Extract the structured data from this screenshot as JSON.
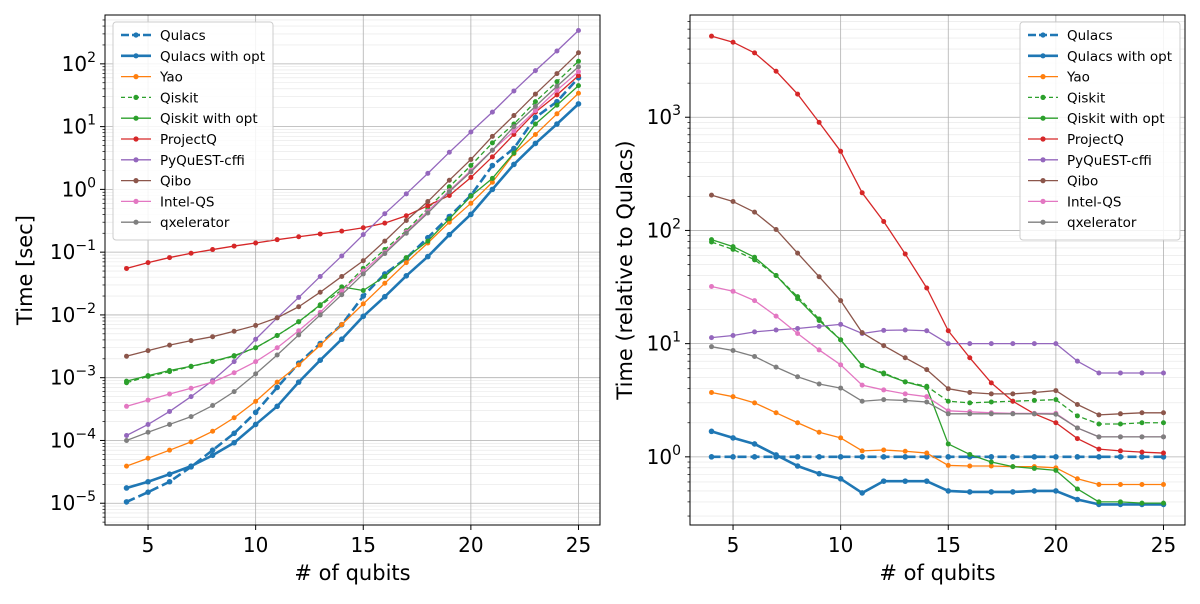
{
  "chart_data": [
    {
      "type": "line",
      "title": "",
      "xlabel": "# of qubits",
      "ylabel": "Time [sec]",
      "yscale": "log",
      "xlim": [
        3.0,
        26.0
      ],
      "ylim": [
        4.5e-06,
        600
      ],
      "xticks": [
        5,
        10,
        15,
        20,
        25
      ],
      "xtick_labels": [
        "5",
        "10",
        "15",
        "20",
        "25"
      ],
      "yticks": [
        1e-05,
        0.0001,
        0.001,
        0.01,
        0.1,
        1,
        10,
        100
      ],
      "ytick_labels": [
        {
          "base": "10",
          "exp": "−5"
        },
        {
          "base": "10",
          "exp": "−4"
        },
        {
          "base": "10",
          "exp": "−3"
        },
        {
          "base": "10",
          "exp": "−2"
        },
        {
          "base": "10",
          "exp": "−1"
        },
        {
          "base": "10",
          "exp": "0"
        },
        {
          "base": "10",
          "exp": "1"
        },
        {
          "base": "10",
          "exp": "2"
        }
      ],
      "grid": true,
      "legend_position": "top-left",
      "x": [
        4,
        5,
        6,
        7,
        8,
        9,
        10,
        11,
        12,
        13,
        14,
        15,
        16,
        17,
        18,
        19,
        20,
        21,
        22,
        23,
        24,
        25
      ],
      "series": [
        {
          "name": "Qulacs",
          "color": "#1f77b4",
          "style": "dashed",
          "width": 2.6,
          "values": [
            1.05e-05,
            1.5e-05,
            2.2e-05,
            3.8e-05,
            7e-05,
            0.00013,
            0.00028,
            0.0007,
            0.0017,
            0.0035,
            0.007,
            0.02,
            0.045,
            0.08,
            0.17,
            0.37,
            0.8,
            2.4,
            4.5,
            14,
            25,
            60
          ]
        },
        {
          "name": "Qulacs with opt",
          "color": "#1f77b4",
          "style": "solid",
          "width": 2.6,
          "values": [
            1.75e-05,
            2.2e-05,
            2.9e-05,
            3.9e-05,
            5.8e-05,
            9.2e-05,
            0.00018,
            0.00035,
            0.00085,
            0.0019,
            0.0041,
            0.0095,
            0.0195,
            0.042,
            0.085,
            0.19,
            0.4,
            1.0,
            2.5,
            5.4,
            11,
            23
          ]
        },
        {
          "name": "Yao",
          "color": "#ff7f0e",
          "style": "solid",
          "width": 1.3,
          "values": [
            3.9e-05,
            5.2e-05,
            7e-05,
            9.5e-05,
            0.00014,
            0.00023,
            0.00042,
            0.00085,
            0.0016,
            0.0033,
            0.007,
            0.015,
            0.032,
            0.068,
            0.14,
            0.3,
            0.6,
            1.3,
            3.7,
            7.5,
            16,
            34
          ]
        },
        {
          "name": "Qiskit",
          "color": "#2ca02c",
          "style": "dashed",
          "width": 1.3,
          "values": [
            0.00083,
            0.00105,
            0.00125,
            0.0015,
            0.0018,
            0.0022,
            0.003,
            0.0047,
            0.0078,
            0.014,
            0.025,
            0.055,
            0.11,
            0.22,
            0.5,
            1.1,
            2.4,
            5.5,
            11,
            25,
            52,
            110
          ]
        },
        {
          "name": "Qiskit with opt",
          "color": "#2ca02c",
          "style": "solid",
          "width": 1.3,
          "values": [
            0.00088,
            0.00108,
            0.0013,
            0.00152,
            0.00182,
            0.00225,
            0.003,
            0.0047,
            0.0078,
            0.0145,
            0.028,
            0.0245,
            0.041,
            0.082,
            0.15,
            0.34,
            0.78,
            1.5,
            3.8,
            11,
            22,
            45
          ]
        },
        {
          "name": "ProjectQ",
          "color": "#d62728",
          "style": "solid",
          "width": 1.3,
          "values": [
            0.055,
            0.068,
            0.082,
            0.096,
            0.11,
            0.125,
            0.14,
            0.158,
            0.176,
            0.195,
            0.216,
            0.245,
            0.29,
            0.38,
            0.55,
            0.8,
            1.55,
            3.3,
            7.5,
            17,
            32,
            65
          ]
        },
        {
          "name": "PyQuEST-cffi",
          "color": "#9467bd",
          "style": "solid",
          "width": 1.3,
          "values": [
            0.00012,
            0.00018,
            0.00029,
            0.0005,
            0.0009,
            0.0018,
            0.0041,
            0.009,
            0.019,
            0.041,
            0.087,
            0.19,
            0.41,
            0.85,
            1.8,
            3.9,
            8.2,
            17,
            37,
            78,
            160,
            340
          ]
        },
        {
          "name": "Qibo",
          "color": "#8c564b",
          "style": "solid",
          "width": 1.3,
          "values": [
            0.0022,
            0.0027,
            0.0033,
            0.0039,
            0.0045,
            0.0055,
            0.0068,
            0.009,
            0.0135,
            0.023,
            0.041,
            0.073,
            0.15,
            0.32,
            0.64,
            1.4,
            3.0,
            7.0,
            15,
            33,
            70,
            150
          ]
        },
        {
          "name": "Intel-QS",
          "color": "#e377c2",
          "style": "solid",
          "width": 1.3,
          "values": [
            0.00035,
            0.00044,
            0.00055,
            0.00068,
            0.00085,
            0.0012,
            0.0018,
            0.003,
            0.0056,
            0.011,
            0.024,
            0.05,
            0.1,
            0.21,
            0.45,
            0.95,
            2.0,
            4.2,
            8.5,
            18,
            38,
            75
          ]
        },
        {
          "name": "qxelerator",
          "color": "#7f7f7f",
          "style": "solid",
          "width": 1.3,
          "values": [
            0.0001,
            0.000135,
            0.00018,
            0.00024,
            0.00036,
            0.0006,
            0.00115,
            0.0023,
            0.0048,
            0.01,
            0.021,
            0.045,
            0.095,
            0.2,
            0.42,
            0.92,
            1.9,
            4.2,
            10,
            21,
            44,
            90
          ]
        }
      ]
    },
    {
      "type": "line",
      "title": "",
      "xlabel": "# of qubits",
      "ylabel": "Time (relative to Qulacs)",
      "yscale": "log",
      "xlim": [
        3.0,
        26.0
      ],
      "ylim": [
        0.25,
        8000
      ],
      "xticks": [
        5,
        10,
        15,
        20,
        25
      ],
      "xtick_labels": [
        "5",
        "10",
        "15",
        "20",
        "25"
      ],
      "yticks": [
        1,
        10,
        100,
        1000
      ],
      "ytick_labels": [
        {
          "base": "10",
          "exp": "0"
        },
        {
          "base": "10",
          "exp": "1"
        },
        {
          "base": "10",
          "exp": "2"
        },
        {
          "base": "10",
          "exp": "3"
        }
      ],
      "grid": true,
      "legend_position": "top-right",
      "x": [
        4,
        5,
        6,
        7,
        8,
        9,
        10,
        11,
        12,
        13,
        14,
        15,
        16,
        17,
        18,
        19,
        20,
        21,
        22,
        23,
        24,
        25
      ],
      "series": [
        {
          "name": "Qulacs",
          "color": "#1f77b4",
          "style": "dashed",
          "width": 2.6,
          "values": [
            1,
            1,
            1,
            1,
            1,
            1,
            1,
            1,
            1,
            1,
            1,
            1,
            1,
            1,
            1,
            1,
            1,
            1,
            1,
            1,
            1,
            1
          ]
        },
        {
          "name": "Qulacs with opt",
          "color": "#1f77b4",
          "style": "solid",
          "width": 2.6,
          "values": [
            1.68,
            1.47,
            1.3,
            1.04,
            0.83,
            0.71,
            0.64,
            0.48,
            0.61,
            0.61,
            0.61,
            0.5,
            0.49,
            0.49,
            0.49,
            0.5,
            0.5,
            0.42,
            0.38,
            0.38,
            0.38,
            0.38
          ]
        },
        {
          "name": "Yao",
          "color": "#ff7f0e",
          "style": "solid",
          "width": 1.3,
          "values": [
            3.7,
            3.4,
            3.0,
            2.45,
            2.0,
            1.65,
            1.47,
            1.13,
            1.15,
            1.12,
            1.08,
            0.84,
            0.83,
            0.83,
            0.82,
            0.82,
            0.8,
            0.64,
            0.57,
            0.57,
            0.57,
            0.57
          ]
        },
        {
          "name": "Qiskit",
          "color": "#2ca02c",
          "style": "dashed",
          "width": 1.3,
          "values": [
            79,
            68,
            55,
            40,
            26,
            16.5,
            10.8,
            6.4,
            5.5,
            4.6,
            4.2,
            3.1,
            3.0,
            3.05,
            3.1,
            3.15,
            3.2,
            2.3,
            1.95,
            1.95,
            2.0,
            2.0
          ]
        },
        {
          "name": "Qiskit with opt",
          "color": "#2ca02c",
          "style": "solid",
          "width": 1.3,
          "values": [
            83,
            72,
            58,
            40,
            25,
            16,
            10.8,
            6.4,
            5.4,
            4.6,
            4.1,
            1.3,
            1.05,
            0.9,
            0.82,
            0.79,
            0.76,
            0.52,
            0.4,
            0.4,
            0.39,
            0.39
          ]
        },
        {
          "name": "ProjectQ",
          "color": "#d62728",
          "style": "solid",
          "width": 1.3,
          "values": [
            5200,
            4600,
            3700,
            2550,
            1600,
            900,
            500,
            215,
            120,
            62,
            31,
            13,
            7.5,
            4.5,
            3.1,
            2.4,
            2.0,
            1.45,
            1.17,
            1.13,
            1.1,
            1.08
          ]
        },
        {
          "name": "PyQuEST-cffi",
          "color": "#9467bd",
          "style": "solid",
          "width": 1.3,
          "values": [
            11.3,
            11.8,
            12.7,
            13.2,
            13.6,
            14.2,
            14.8,
            12.3,
            13.1,
            13.2,
            13.0,
            10.0,
            10.0,
            10.0,
            10.0,
            10.0,
            10.0,
            7.0,
            5.5,
            5.5,
            5.5,
            5.5
          ]
        },
        {
          "name": "Qibo",
          "color": "#8c564b",
          "style": "solid",
          "width": 1.3,
          "values": [
            205,
            180,
            145,
            102,
            63,
            39,
            24,
            12.5,
            9.6,
            7.5,
            5.9,
            4.0,
            3.7,
            3.6,
            3.6,
            3.7,
            3.85,
            2.9,
            2.35,
            2.4,
            2.45,
            2.45
          ]
        },
        {
          "name": "Intel-QS",
          "color": "#e377c2",
          "style": "solid",
          "width": 1.3,
          "values": [
            32,
            29,
            24,
            17.5,
            12.3,
            8.8,
            6.5,
            4.3,
            3.9,
            3.6,
            3.4,
            2.55,
            2.5,
            2.45,
            2.42,
            2.42,
            2.42,
            1.8,
            1.5,
            1.5,
            1.5,
            1.5
          ]
        },
        {
          "name": "qxelerator",
          "color": "#7f7f7f",
          "style": "solid",
          "width": 1.3,
          "values": [
            9.4,
            8.7,
            7.7,
            6.2,
            5.1,
            4.4,
            4.05,
            3.1,
            3.2,
            3.15,
            3.05,
            2.4,
            2.4,
            2.4,
            2.4,
            2.4,
            2.38,
            1.8,
            1.5,
            1.5,
            1.5,
            1.5
          ]
        }
      ]
    }
  ]
}
